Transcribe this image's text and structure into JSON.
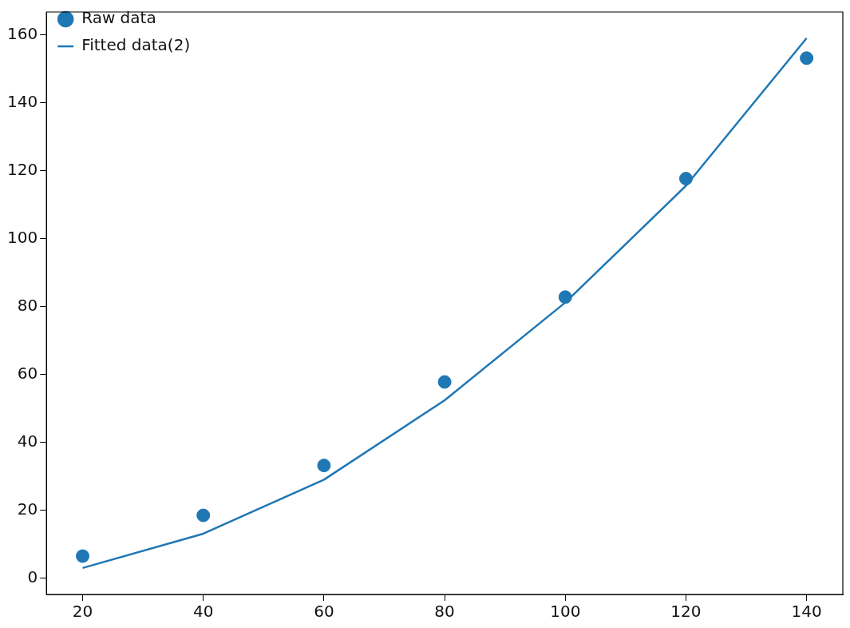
{
  "chart_data": {
    "type": "scatter",
    "x": [
      20,
      40,
      60,
      80,
      100,
      120,
      140
    ],
    "series": [
      {
        "name": "Raw data",
        "color": "#1f77b4",
        "marker": "circle",
        "values": [
          6.5,
          18.5,
          33.2,
          57.8,
          82.8,
          117.7,
          153.2
        ]
      },
      {
        "name": "Fitted data(2)",
        "type": "line",
        "color": "#1f77b4",
        "marker": "none",
        "line_style": "solid",
        "values": [
          3.0,
          13.1,
          29.0,
          52.4,
          81.2,
          115.6,
          159.1
        ]
      }
    ],
    "xlim": [
      14,
      146
    ],
    "xticks": [
      20,
      40,
      60,
      80,
      100,
      120,
      140
    ],
    "ylim": [
      -4.8,
      166.8
    ],
    "yticks": [
      0,
      20,
      40,
      60,
      80,
      100,
      120,
      140,
      160
    ],
    "grid": false,
    "legend": "top left"
  }
}
